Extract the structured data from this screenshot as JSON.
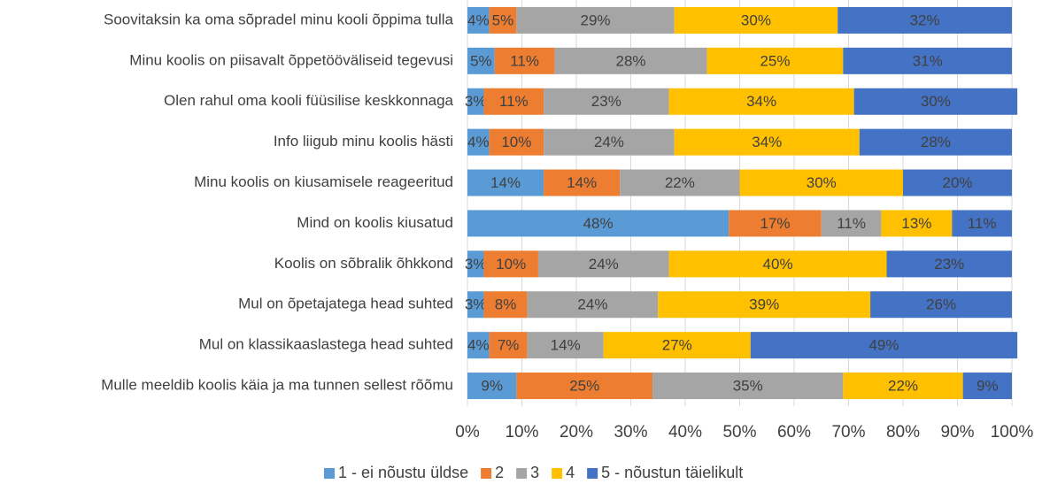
{
  "chart_data": {
    "type": "stacked_barh",
    "categories": [
      "Soovitaksin ka oma sõpradel minu kooli õppima tulla",
      "Minu koolis on piisavalt õppetööväliseid tegevusi",
      "Olen rahul oma kooli füüsilise keskkonnaga",
      "Info liigub minu koolis hästi",
      "Minu koolis on kiusamisele reageeritud",
      "Mind on koolis kiusatud",
      "Koolis on sõbralik õhkkond",
      "Mul on õpetajatega head suhted",
      "Mul on klassikaaslastega head suhted",
      "Mulle meeldib koolis käia ja ma tunnen sellest rõõmu"
    ],
    "series": [
      {
        "name": "1 - ei nõustu üldse",
        "color": "#5b9bd5",
        "values": [
          4,
          5,
          3,
          4,
          14,
          48,
          3,
          3,
          4,
          9
        ],
        "value_labels": [
          "4%",
          "5%",
          "3%",
          "4%",
          "14%",
          "48%",
          "3%",
          "3%",
          "4%",
          "9%"
        ]
      },
      {
        "name": "2",
        "color": "#ed7d31",
        "values": [
          5,
          11,
          11,
          10,
          14,
          17,
          10,
          8,
          7,
          25
        ],
        "value_labels": [
          "5%",
          "11%",
          "11%",
          "10%",
          "14%",
          "17%",
          "10%",
          "8%",
          "7%",
          "25%"
        ]
      },
      {
        "name": "3",
        "color": "#a5a5a5",
        "values": [
          29,
          28,
          23,
          24,
          22,
          11,
          24,
          24,
          14,
          35
        ],
        "value_labels": [
          "29%",
          "28%",
          "23%",
          "24%",
          "22%",
          "11%",
          "24%",
          "24%",
          "14%",
          "35%"
        ]
      },
      {
        "name": "4",
        "color": "#ffc000",
        "values": [
          30,
          25,
          34,
          34,
          30,
          13,
          40,
          39,
          27,
          22
        ],
        "value_labels": [
          "30%",
          "25%",
          "34%",
          "34%",
          "30%",
          "13%",
          "40%",
          "39%",
          "27%",
          "22%"
        ]
      },
      {
        "name": "5 - nõustun täielikult",
        "color": "#4472c4",
        "values": [
          32,
          31,
          30,
          28,
          20,
          11,
          23,
          26,
          49,
          9
        ],
        "value_labels": [
          "32%",
          "31%",
          "30%",
          "28%",
          "20%",
          "11%",
          "23%",
          "26%",
          "49%",
          "9%"
        ]
      }
    ],
    "xlim": [
      0,
      100
    ],
    "xticks": [
      {
        "value": 0,
        "label": "0%"
      },
      {
        "value": 10,
        "label": "10%"
      },
      {
        "value": 20,
        "label": "20%"
      },
      {
        "value": 30,
        "label": "30%"
      },
      {
        "value": 40,
        "label": "40%"
      },
      {
        "value": 50,
        "label": "50%"
      },
      {
        "value": 60,
        "label": "60%"
      },
      {
        "value": 70,
        "label": "70%"
      },
      {
        "value": 80,
        "label": "80%"
      },
      {
        "value": 90,
        "label": "90%"
      },
      {
        "value": 100,
        "label": "100%"
      }
    ],
    "grid": true,
    "legend": "bottom"
  }
}
